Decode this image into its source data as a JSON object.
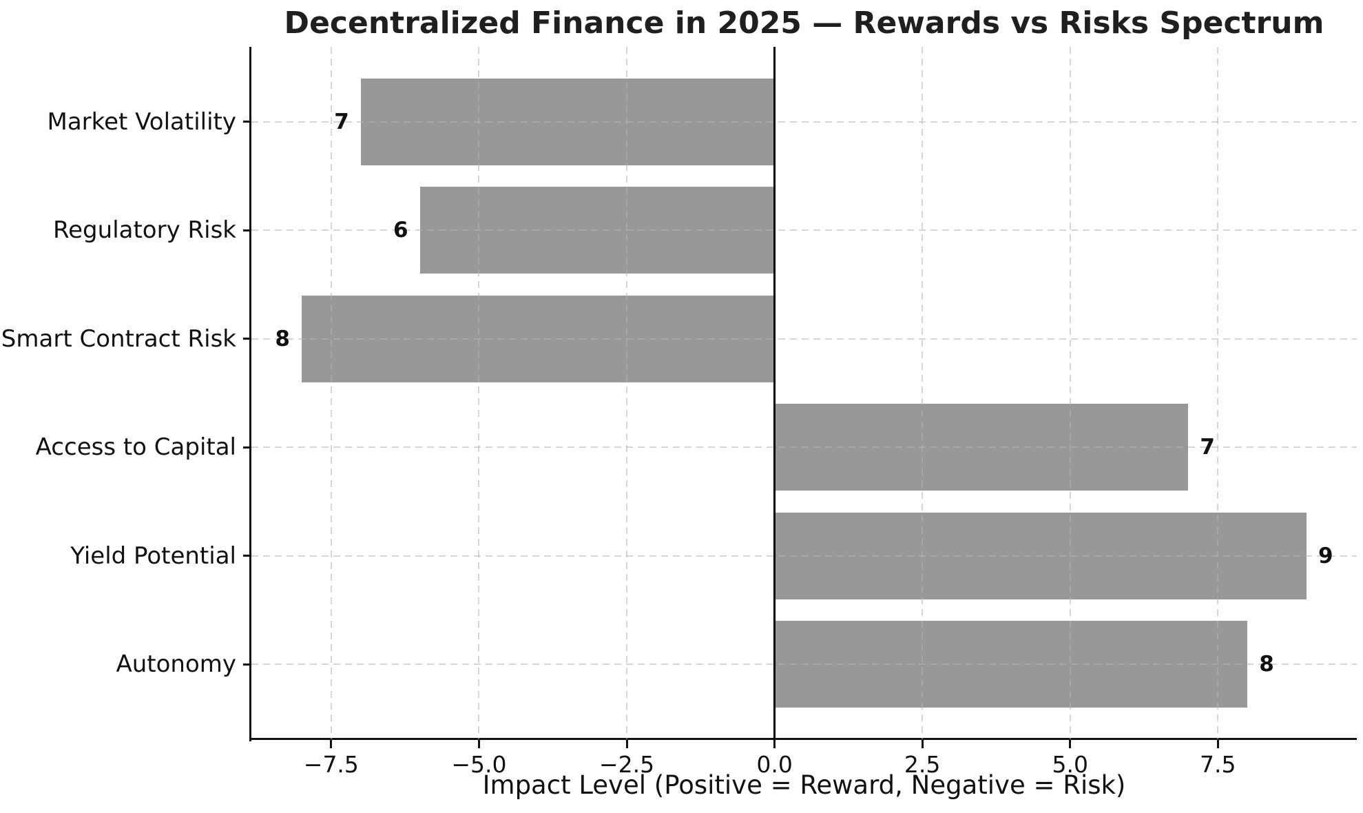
{
  "chart_data": {
    "type": "bar",
    "orientation": "horizontal",
    "title": "Decentralized Finance in 2025 — Rewards vs Risks Spectrum",
    "xlabel": "Impact Level (Positive = Reward, Negative = Risk)",
    "ylabel": "",
    "categories": [
      "Market Volatility",
      "Regulatory Risk",
      "Smart Contract Risk",
      "Access to Capital",
      "Yield Potential",
      "Autonomy"
    ],
    "values": [
      -7,
      -6,
      -8,
      7,
      9,
      8
    ],
    "bar_end_labels": [
      "7",
      "6",
      "8",
      "7",
      "9",
      "8"
    ],
    "xlim": [
      -8.85,
      9.85
    ],
    "xticks": [
      -7.5,
      -5.0,
      -2.5,
      0.0,
      2.5,
      5.0,
      7.5
    ],
    "xtick_labels": [
      "−7.5",
      "−5.0",
      "−2.5",
      "0.0",
      "2.5",
      "5.0",
      "7.5"
    ],
    "grid": "dashed horizontal and vertical gridlines drawn over bars",
    "legend": "none",
    "colors": {
      "bar": "#989898",
      "gridline": "#b4b4b4",
      "zero_line": "#000000",
      "spine": "#111111",
      "text": "#111111",
      "title": "#1f1f1f",
      "background": "#ffffff"
    }
  }
}
